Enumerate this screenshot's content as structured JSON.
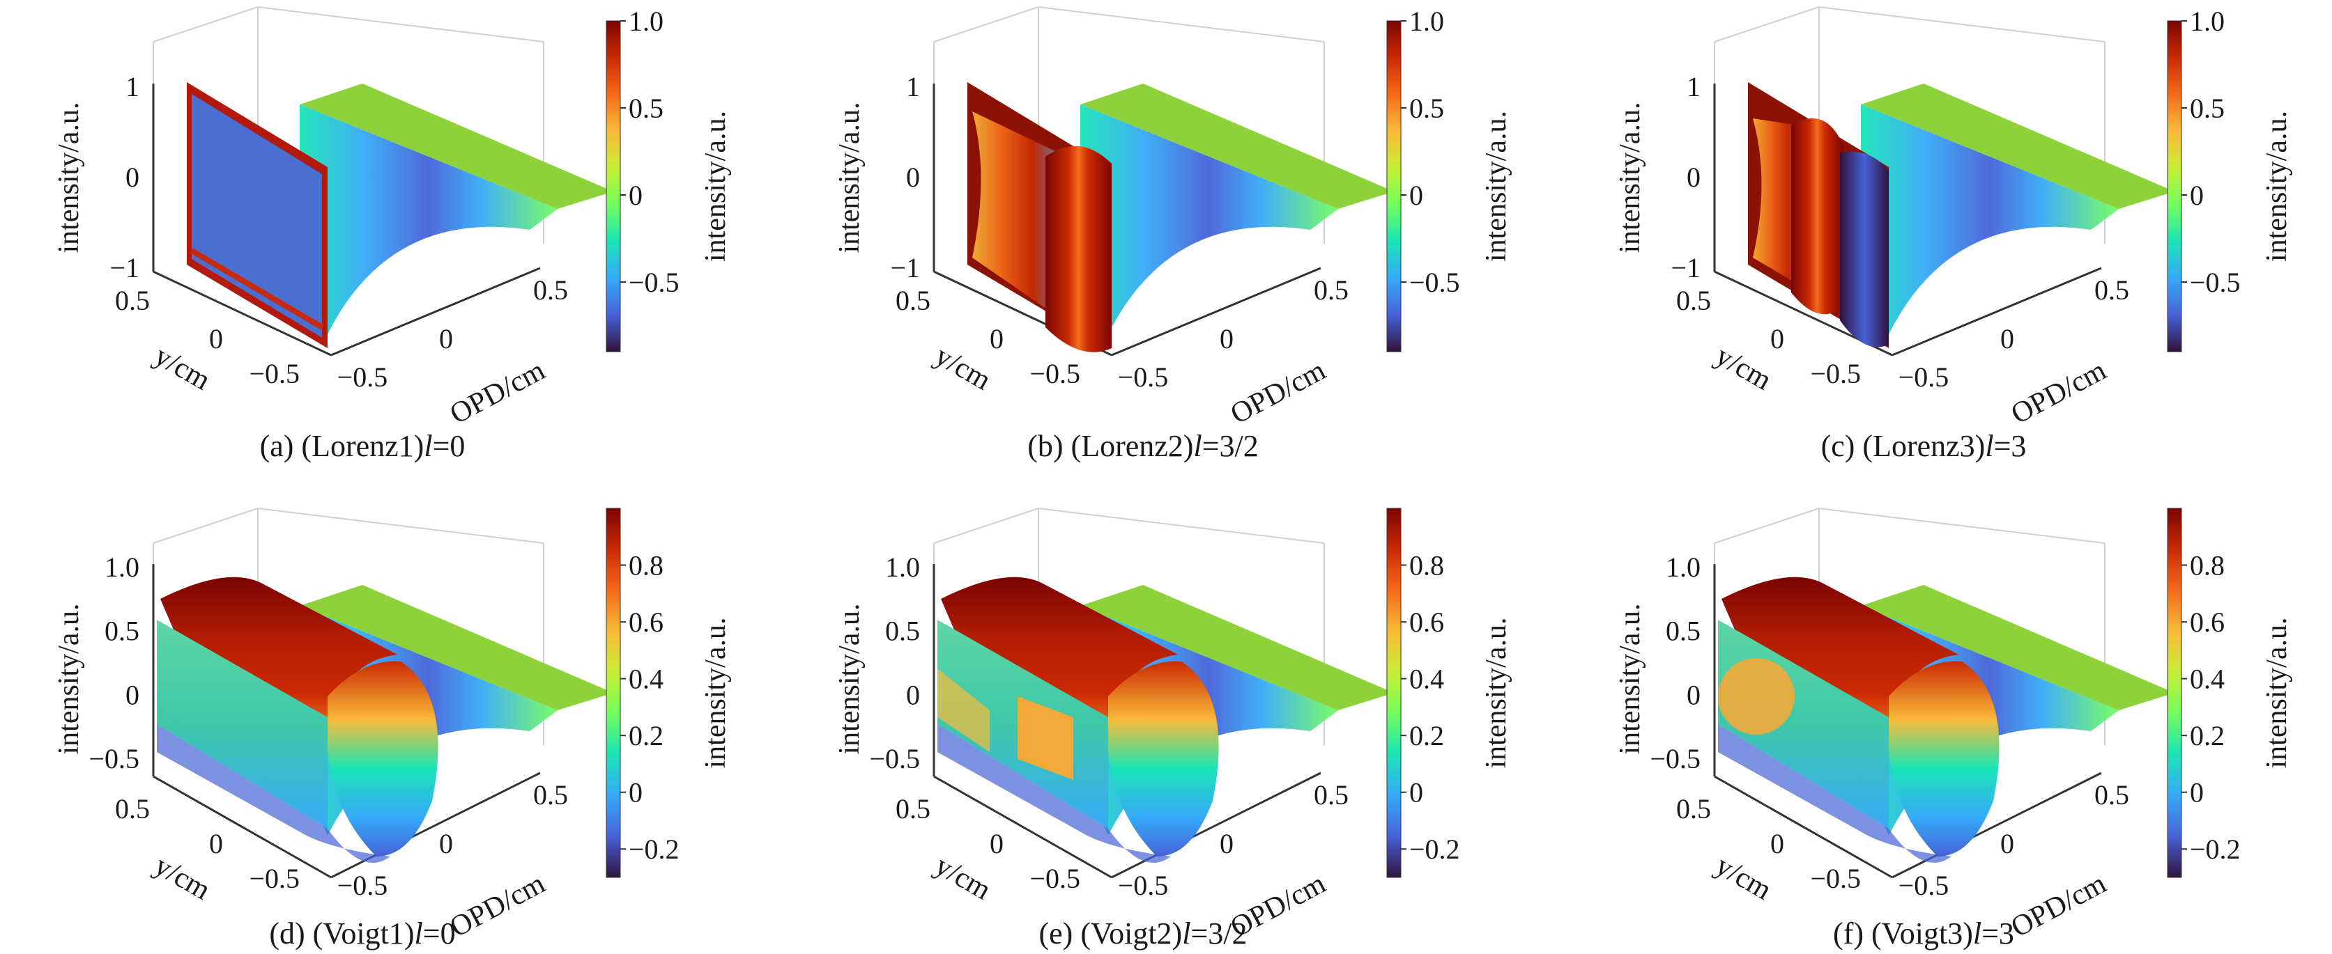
{
  "figure": {
    "colormap": [
      "#30123b",
      "#4662d7",
      "#36aaf9",
      "#1ae4b6",
      "#72fe5e",
      "#c8ef34",
      "#faba39",
      "#f66b19",
      "#ca2a04",
      "#7a0403"
    ]
  },
  "chart_data": [
    {
      "id": "a",
      "type": "surface3d",
      "caption": "(a) (Lorenz1)",
      "l_value": "=0",
      "zlabel": "intensity/a.u.",
      "ylabel": "y/cm",
      "xlabel": "OPD/cm",
      "cblabel": "intensity/a.u.",
      "zticks": [
        "1",
        "0",
        "−1"
      ],
      "zlim": [
        -1,
        1
      ],
      "yticks": [
        "0.5",
        "0",
        "−0.5"
      ],
      "xticks": [
        "−0.5",
        "0",
        "0.5"
      ],
      "cbticks": [
        "1.0",
        "0.5",
        "0",
        "−0.5"
      ],
      "cbrange": [
        -0.9,
        1.0
      ],
      "front_face": "blue"
    },
    {
      "id": "b",
      "type": "surface3d",
      "caption": "(b) (Lorenz2)",
      "l_value": "=3/2",
      "zlabel": "intensity/a.u.",
      "ylabel": "y/cm",
      "xlabel": "OPD/cm",
      "cblabel": "intensity/a.u.",
      "zticks": [
        "1",
        "0",
        "−1"
      ],
      "zlim": [
        -1,
        1
      ],
      "yticks": [
        "0.5",
        "0",
        "−0.5"
      ],
      "xticks": [
        "−0.5",
        "0",
        "0.5"
      ],
      "cbticks": [
        "1.0",
        "0.5",
        "0",
        "−0.5"
      ],
      "cbrange": [
        -0.9,
        1.0
      ],
      "front_face": "red-ridge"
    },
    {
      "id": "c",
      "type": "surface3d",
      "caption": "(c) (Lorenz3)",
      "l_value": "=3",
      "zlabel": "intensity/a.u.",
      "ylabel": "y/cm",
      "xlabel": "OPD/cm",
      "cblabel": "intensity/a.u.",
      "zticks": [
        "1",
        "0",
        "−1"
      ],
      "zlim": [
        -1,
        1
      ],
      "yticks": [
        "0.5",
        "0",
        "−0.5"
      ],
      "xticks": [
        "−0.5",
        "0",
        "0.5"
      ],
      "cbticks": [
        "1.0",
        "0.5",
        "0",
        "−0.5"
      ],
      "cbrange": [
        -0.9,
        1.0
      ],
      "front_face": "red-blue"
    },
    {
      "id": "d",
      "type": "surface3d",
      "caption": "(d) (Voigt1)",
      "l_value": "=0",
      "zlabel": "intensity/a.u.",
      "ylabel": "y/cm",
      "xlabel": "OPD/cm",
      "cblabel": "intensity/a.u.",
      "zticks": [
        "1.0",
        "0.5",
        "0",
        "−0.5"
      ],
      "zlim": [
        -0.5,
        1.0
      ],
      "yticks": [
        "0.5",
        "0",
        "−0.5"
      ],
      "xticks": [
        "−0.5",
        "0",
        "0.5"
      ],
      "cbticks": [
        "0.8",
        "0.6",
        "0.4",
        "0.2",
        "0",
        "−0.2"
      ],
      "cbrange": [
        -0.3,
        1.0
      ],
      "front_face": "teal"
    },
    {
      "id": "e",
      "type": "surface3d",
      "caption": "(e) (Voigt2)",
      "l_value": "=3/2",
      "zlabel": "intensity/a.u.",
      "ylabel": "y/cm",
      "xlabel": "OPD/cm",
      "cblabel": "intensity/a.u.",
      "zticks": [
        "1.0",
        "0.5",
        "0",
        "−0.5"
      ],
      "zlim": [
        -0.5,
        1.0
      ],
      "yticks": [
        "0.5",
        "0",
        "−0.5"
      ],
      "xticks": [
        "−0.5",
        "0",
        "0.5"
      ],
      "cbticks": [
        "0.8",
        "0.6",
        "0.4",
        "0.2",
        "0",
        "−0.2"
      ],
      "cbrange": [
        -0.3,
        1.0
      ],
      "front_face": "orange-patch"
    },
    {
      "id": "f",
      "type": "surface3d",
      "caption": "(f) (Voigt3)",
      "l_value": "=3",
      "zlabel": "intensity/a.u.",
      "ylabel": "y/cm",
      "xlabel": "OPD/cm",
      "cblabel": "intensity/a.u.",
      "zticks": [
        "1.0",
        "0.5",
        "0",
        "−0.5"
      ],
      "zlim": [
        -0.5,
        1.0
      ],
      "yticks": [
        "0.5",
        "0",
        "−0.5"
      ],
      "xticks": [
        "−0.5",
        "0",
        "0.5"
      ],
      "cbticks": [
        "0.8",
        "0.6",
        "0.4",
        "0.2",
        "0",
        "−0.2"
      ],
      "cbrange": [
        -0.3,
        1.0
      ],
      "front_face": "orange-oval"
    }
  ]
}
